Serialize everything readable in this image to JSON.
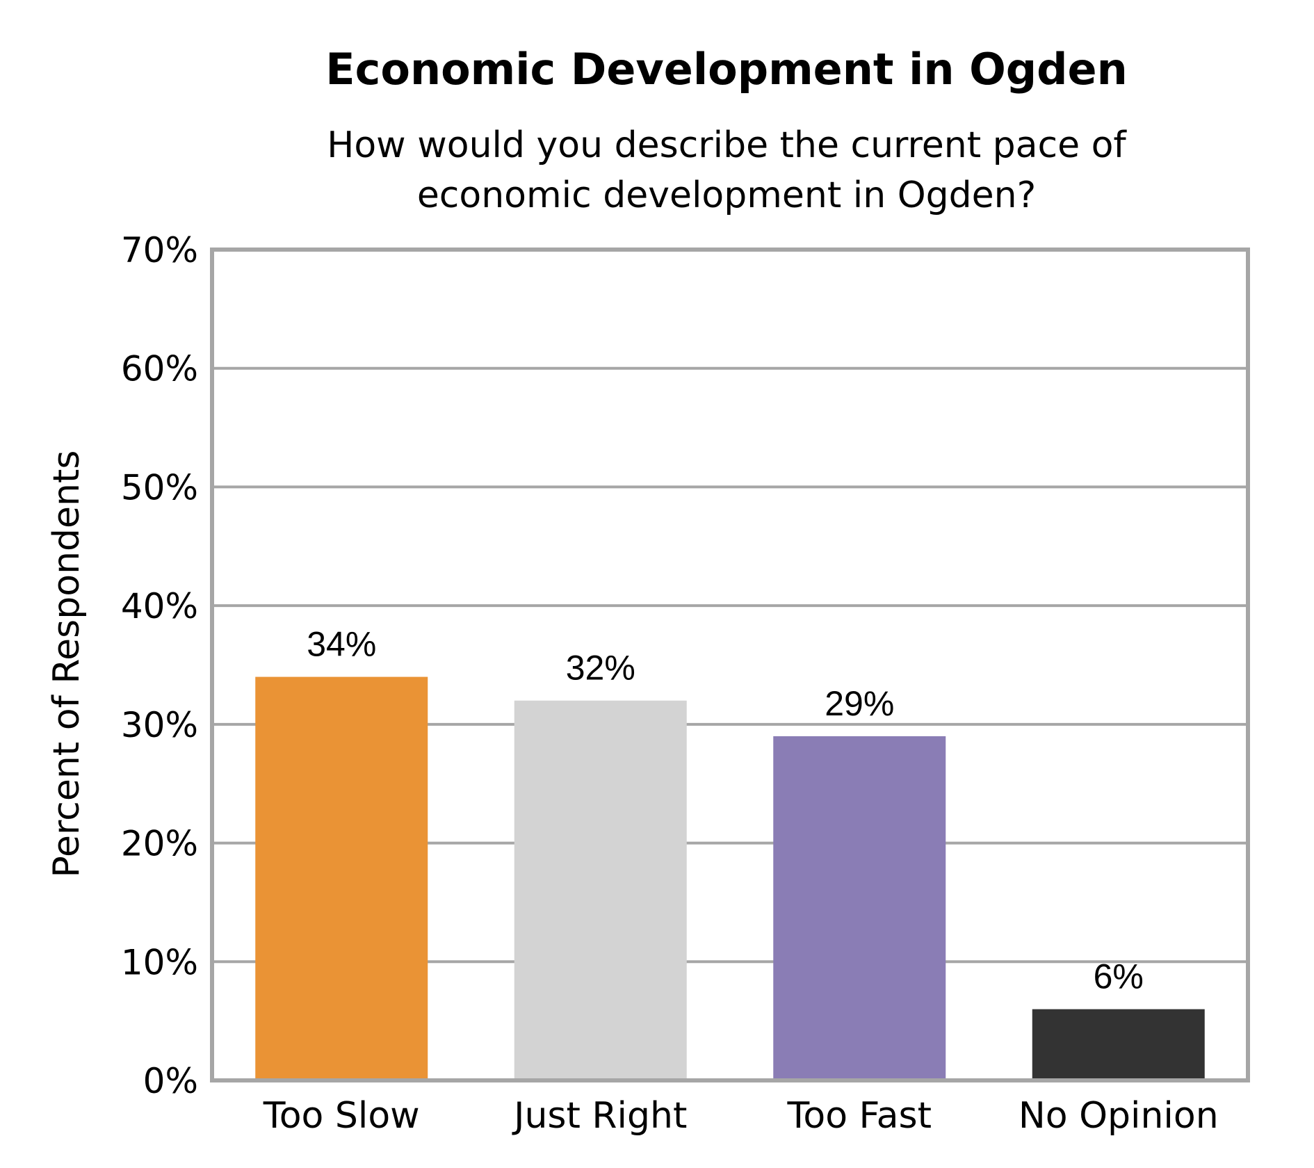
{
  "chart_data": {
    "type": "bar",
    "title": "Economic Development in Ogden",
    "subtitle": [
      "How would you describe the current pace of",
      "economic development in Ogden?"
    ],
    "xlabel": "",
    "ylabel": "Percent of Respondents",
    "ylim": [
      0,
      70
    ],
    "yticks": [
      0,
      10,
      20,
      30,
      40,
      50,
      60,
      70
    ],
    "ytick_labels": [
      "0%",
      "10%",
      "20%",
      "30%",
      "40%",
      "50%",
      "60%",
      "70%"
    ],
    "categories": [
      "Too Slow",
      "Just Right",
      "Too Fast",
      "No Opinion"
    ],
    "values": [
      34,
      32,
      29,
      6
    ],
    "data_labels": [
      "34%",
      "32%",
      "29%",
      "6%"
    ],
    "colors": [
      "#EA9335",
      "#D3D3D3",
      "#8A7DB5",
      "#333333"
    ],
    "grid": true,
    "legend": "none"
  }
}
